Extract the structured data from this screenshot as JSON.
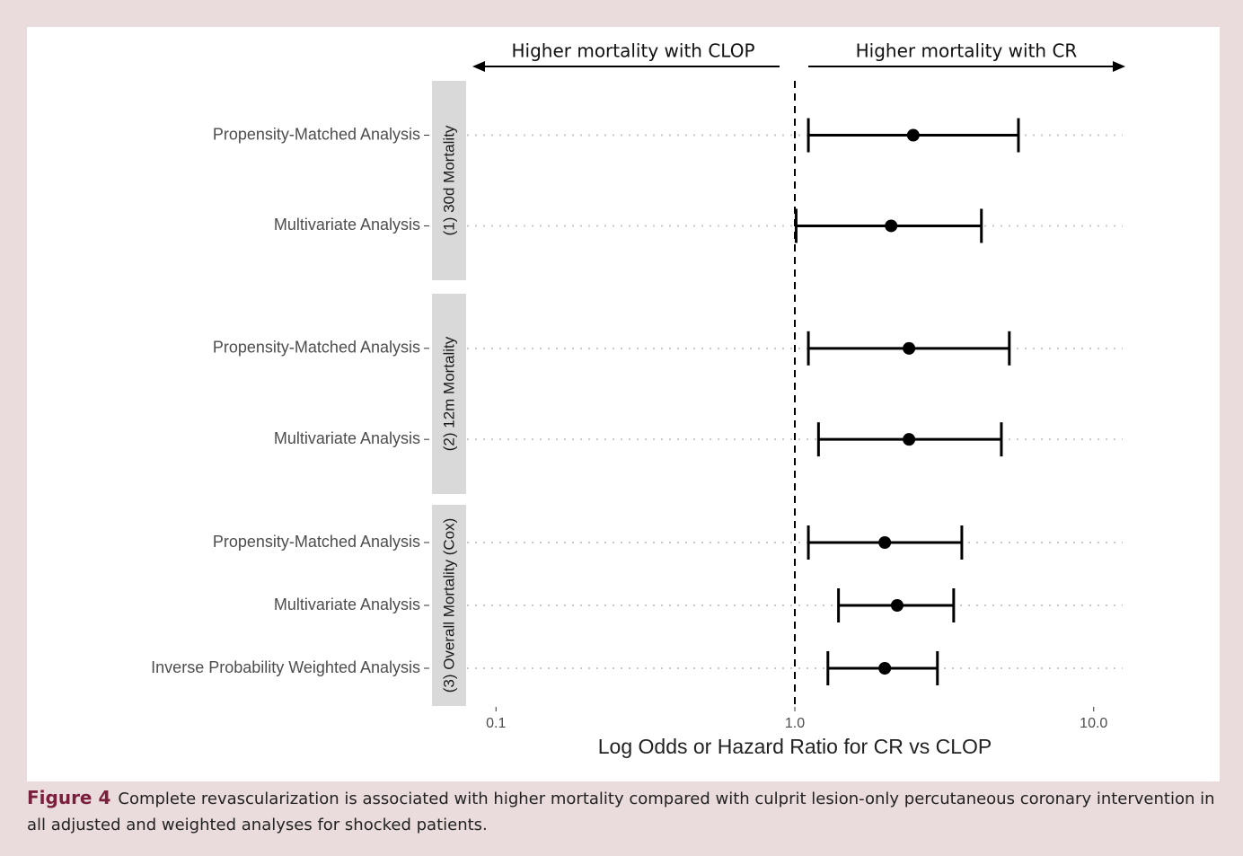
{
  "chart_data": {
    "type": "forest",
    "annotation_left": "Higher mortality with CLOP",
    "annotation_right": "Higher mortality with CR",
    "x_label": "Log Odds or Hazard Ratio for CR vs CLOP",
    "log_x": true,
    "xlim": [
      0.08,
      12.5
    ],
    "xticks": [
      0.1,
      {
        "value": 1,
        "label": "1.0"
      },
      {
        "value": 10,
        "label": "10.0"
      }
    ],
    "reference_line": 1,
    "grid": true,
    "color": "#000000",
    "groups": [
      {
        "label": "(1) 30d Mortality",
        "rows": [
          {
            "label": "Propensity-Matched Analysis",
            "estimate": 2.49,
            "lower": 1.11,
            "upper": 5.6
          },
          {
            "label": "Multivariate Analysis",
            "estimate": 2.1,
            "lower": 1.01,
            "upper": 4.21
          }
        ]
      },
      {
        "label": "(2) 12m Mortality",
        "rows": [
          {
            "label": "Propensity-Matched Analysis",
            "estimate": 2.41,
            "lower": 1.11,
            "upper": 5.22
          },
          {
            "label": "Multivariate Analysis",
            "estimate": 2.41,
            "lower": 1.2,
            "upper": 4.91
          }
        ]
      },
      {
        "label": "(3) Overall Mortality (Cox)",
        "rows": [
          {
            "label": "Propensity-Matched Analysis",
            "estimate": 2.0,
            "lower": 1.11,
            "upper": 3.62
          },
          {
            "label": "Multivariate Analysis",
            "estimate": 2.2,
            "lower": 1.4,
            "upper": 3.4
          },
          {
            "label": "Inverse Probability Weighted Analysis",
            "estimate": 2.0,
            "lower": 1.29,
            "upper": 3.0
          }
        ]
      }
    ]
  },
  "caption": {
    "label": "Figure 4",
    "text": "Complete revascularization is associated with higher mortality compared with culprit lesion-only percutaneous coronary intervention in all adjusted and weighted analyses for shocked patients."
  }
}
